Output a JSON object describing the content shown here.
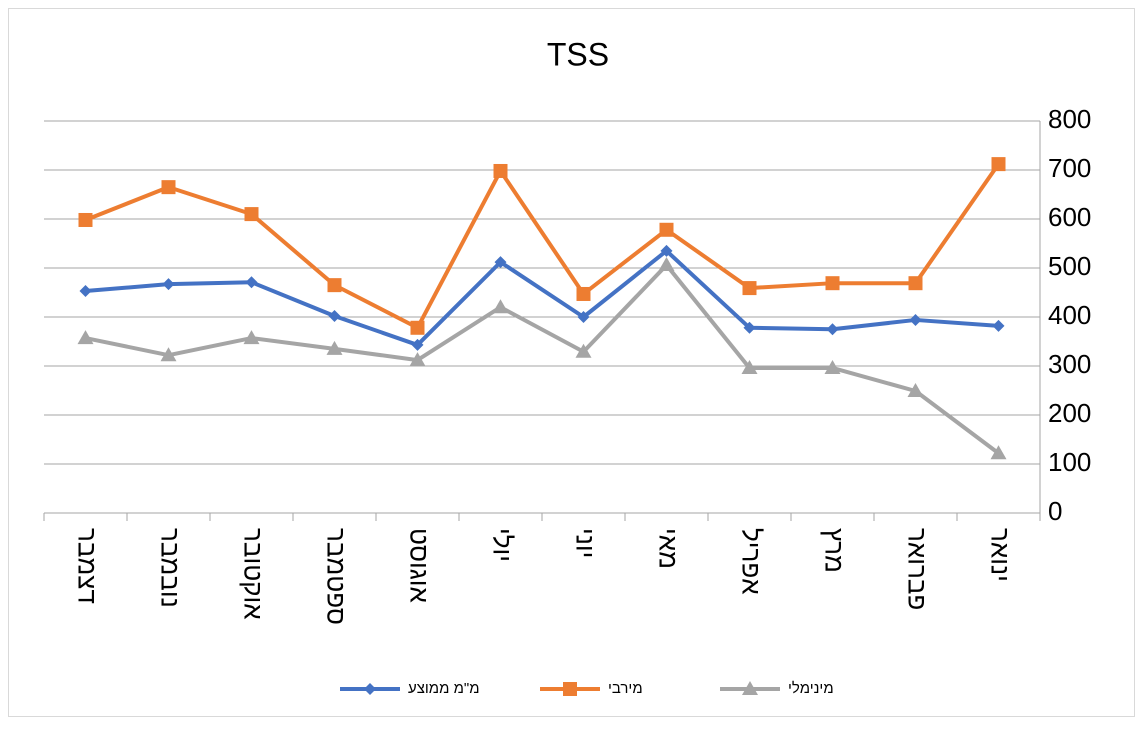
{
  "chart_data": {
    "type": "line",
    "title": "TSS",
    "categories": [
      "דצמבר",
      "נובמבר",
      "אוקטובר",
      "ספטמבר",
      "אוגוסט",
      "יולי",
      "יוני",
      "מאי",
      "אפריל",
      "מרץ",
      "פברואר",
      "ינואר"
    ],
    "series": [
      {
        "name": "מ\"מ ממוצע",
        "color": "#4472c4",
        "marker": "diamond",
        "values": [
          453,
          467,
          471,
          402,
          343,
          512,
          400,
          535,
          378,
          375,
          394,
          382
        ]
      },
      {
        "name": "מירבי",
        "color": "#ed7d31",
        "marker": "square",
        "values": [
          598,
          665,
          610,
          465,
          378,
          698,
          447,
          578,
          459,
          469,
          469,
          712
        ]
      },
      {
        "name": "מינימלי",
        "color": "#a5a5a5",
        "marker": "triangle",
        "values": [
          357,
          322,
          357,
          335,
          312,
          420,
          329,
          506,
          296,
          296,
          249,
          122
        ]
      }
    ],
    "ylim": [
      0,
      800
    ],
    "yticks": [
      0,
      100,
      200,
      300,
      400,
      500,
      600,
      700,
      800
    ],
    "grid": true,
    "y_axis_side": "right",
    "legend": "bottom"
  }
}
